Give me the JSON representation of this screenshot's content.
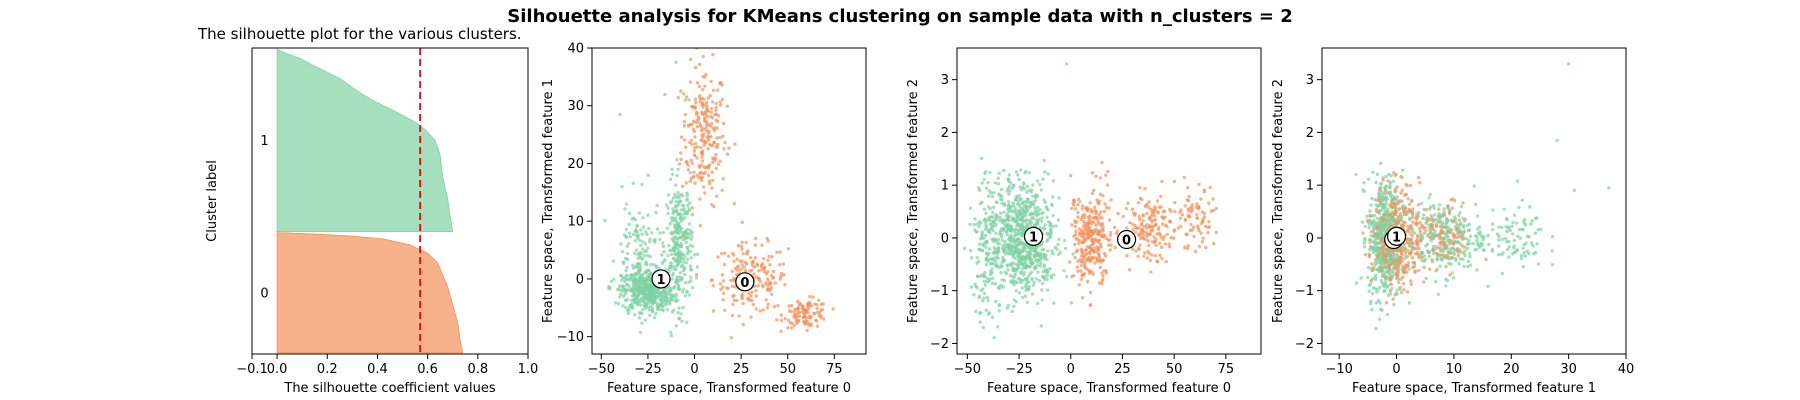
{
  "figure": {
    "title": "Silhouette analysis for KMeans clustering on sample data with n_clusters = 2"
  },
  "colors": {
    "cluster_0": "#f4925b",
    "cluster_1": "#7fd1a3",
    "avg_line": "#ff0000",
    "axes": "#000000"
  },
  "chart_data": [
    {
      "type": "area",
      "title": "The silhouette plot for the various clusters.",
      "xlabel": "The silhouette coefficient values",
      "ylabel": "Cluster label",
      "xlim": [
        -0.1,
        1.0
      ],
      "xticks": [
        "−0.1",
        "0.0",
        "0.2",
        "0.4",
        "0.6",
        "0.8",
        "1.0"
      ],
      "xtick_values": [
        -0.1,
        0.0,
        0.2,
        0.4,
        0.6,
        0.8,
        1.0
      ],
      "ylim": [
        0,
        2550
      ],
      "cluster_labels": [
        "0",
        "1"
      ],
      "average_silhouette": 0.57,
      "average_line_style": "dashed",
      "clusters": [
        {
          "label": "0",
          "start": 10,
          "size": 1000,
          "profile": [
            [
              0.0,
              0.74
            ],
            [
              0.1,
              0.73
            ],
            [
              0.25,
              0.72
            ],
            [
              0.4,
              0.7
            ],
            [
              0.55,
              0.68
            ],
            [
              0.65,
              0.66
            ],
            [
              0.75,
              0.64
            ],
            [
              0.83,
              0.6
            ],
            [
              0.9,
              0.53
            ],
            [
              0.95,
              0.42
            ],
            [
              0.98,
              0.25
            ],
            [
              1.0,
              0.03
            ]
          ]
        },
        {
          "label": "1",
          "start": 1020,
          "size": 1520,
          "profile": [
            [
              0.0,
              0.7
            ],
            [
              0.08,
              0.69
            ],
            [
              0.18,
              0.68
            ],
            [
              0.3,
              0.66
            ],
            [
              0.42,
              0.65
            ],
            [
              0.5,
              0.63
            ],
            [
              0.56,
              0.59
            ],
            [
              0.6,
              0.55
            ],
            [
              0.66,
              0.47
            ],
            [
              0.72,
              0.38
            ],
            [
              0.78,
              0.31
            ],
            [
              0.84,
              0.25
            ],
            [
              0.9,
              0.16
            ],
            [
              0.95,
              0.09
            ],
            [
              0.98,
              0.03
            ],
            [
              1.0,
              0.0
            ]
          ]
        }
      ]
    },
    {
      "type": "scatter",
      "xlabel": "Feature space, Transformed feature 0",
      "ylabel": "Feature space, Transformed feature 1",
      "xlim": [
        -55,
        92
      ],
      "ylim": [
        -13,
        40
      ],
      "xticks": [
        "−50",
        "−25",
        "0",
        "25",
        "50",
        "75"
      ],
      "xtick_values": [
        -50,
        -25,
        0,
        25,
        50,
        75
      ],
      "yticks": [
        "−10",
        "0",
        "10",
        "20",
        "30",
        "40"
      ],
      "ytick_values": [
        -10,
        0,
        10,
        20,
        30,
        40
      ],
      "centers": [
        {
          "label": "0",
          "x": 27,
          "y": -0.5
        },
        {
          "label": "1",
          "x": -18,
          "y": 0
        }
      ],
      "clusters": [
        {
          "label": "0",
          "count": 520,
          "regions": [
            [
              5,
              12,
              25,
              10,
              0.45
            ],
            [
              30,
              20,
              0,
              5,
              0.35
            ],
            [
              60,
              12,
              -6,
              2,
              0.2
            ]
          ]
        },
        {
          "label": "1",
          "count": 900,
          "regions": [
            [
              -25,
              14,
              -2,
              3,
              0.55
            ],
            [
              -8,
              7,
              6,
              9,
              0.3
            ],
            [
              -30,
              12,
              4,
              8,
              0.15
            ]
          ]
        }
      ],
      "outliers": [
        [
          -10,
          37.5
        ],
        [
          -40,
          28.5
        ],
        [
          -5,
          31
        ],
        [
          -3,
          31
        ]
      ]
    },
    {
      "type": "scatter",
      "xlabel": "Feature space, Transformed feature 0",
      "ylabel": "Feature space, Transformed feature 2",
      "xlim": [
        -55,
        92
      ],
      "ylim": [
        -2.2,
        3.6
      ],
      "xticks": [
        "−50",
        "−25",
        "0",
        "25",
        "50",
        "75"
      ],
      "xtick_values": [
        -50,
        -25,
        0,
        25,
        50,
        75
      ],
      "yticks": [
        "−2",
        "−1",
        "0",
        "1",
        "2",
        "3"
      ],
      "ytick_values": [
        -2,
        -1,
        0,
        1,
        2,
        3
      ],
      "centers": [
        {
          "label": "0",
          "x": 27,
          "y": -0.03
        },
        {
          "label": "1",
          "x": -18,
          "y": 0.03
        }
      ],
      "clusters": [
        {
          "label": "0",
          "count": 520,
          "regions": [
            [
              10,
              10,
              0,
              0.8,
              0.55
            ],
            [
              38,
              12,
              0.2,
              0.5,
              0.3
            ],
            [
              60,
              12,
              0.4,
              0.5,
              0.15
            ]
          ]
        },
        {
          "label": "1",
          "count": 900,
          "regions": [
            [
              -22,
              14,
              0,
              0.9,
              0.8
            ],
            [
              -40,
              8,
              -0.3,
              1.0,
              0.2
            ]
          ]
        }
      ],
      "outliers": [
        [
          -2,
          3.3
        ]
      ]
    },
    {
      "type": "scatter",
      "xlabel": "Feature space, Transformed feature 1",
      "ylabel": "Feature space, Transformed feature 2",
      "xlim": [
        -13,
        40
      ],
      "ylim": [
        -2.2,
        3.6
      ],
      "xticks": [
        "−10",
        "0",
        "10",
        "20",
        "30",
        "40"
      ],
      "xtick_values": [
        -10,
        0,
        10,
        20,
        30,
        40
      ],
      "yticks": [
        "−2",
        "−1",
        "0",
        "1",
        "2",
        "3"
      ],
      "ytick_values": [
        -2,
        -1,
        0,
        1,
        2,
        3
      ],
      "centers": [
        {
          "label": "0",
          "x": -0.5,
          "y": -0.03
        },
        {
          "label": "1",
          "x": 0,
          "y": 0.03
        }
      ],
      "clusters": [
        {
          "label": "0",
          "count": 520,
          "regions": [
            [
              0,
              4,
              0,
              0.8,
              0.75
            ],
            [
              8,
              5,
              0,
              0.5,
              0.25
            ]
          ]
        },
        {
          "label": "1",
          "count": 900,
          "regions": [
            [
              -2,
              3,
              0,
              0.95,
              0.6
            ],
            [
              8,
              7,
              0,
              0.6,
              0.3
            ],
            [
              20,
              6,
              0,
              0.5,
              0.1
            ]
          ]
        }
      ],
      "outliers": [
        [
          30,
          3.3
        ],
        [
          31,
          0.9
        ],
        [
          37,
          0.95
        ],
        [
          28,
          1.85
        ]
      ]
    }
  ]
}
